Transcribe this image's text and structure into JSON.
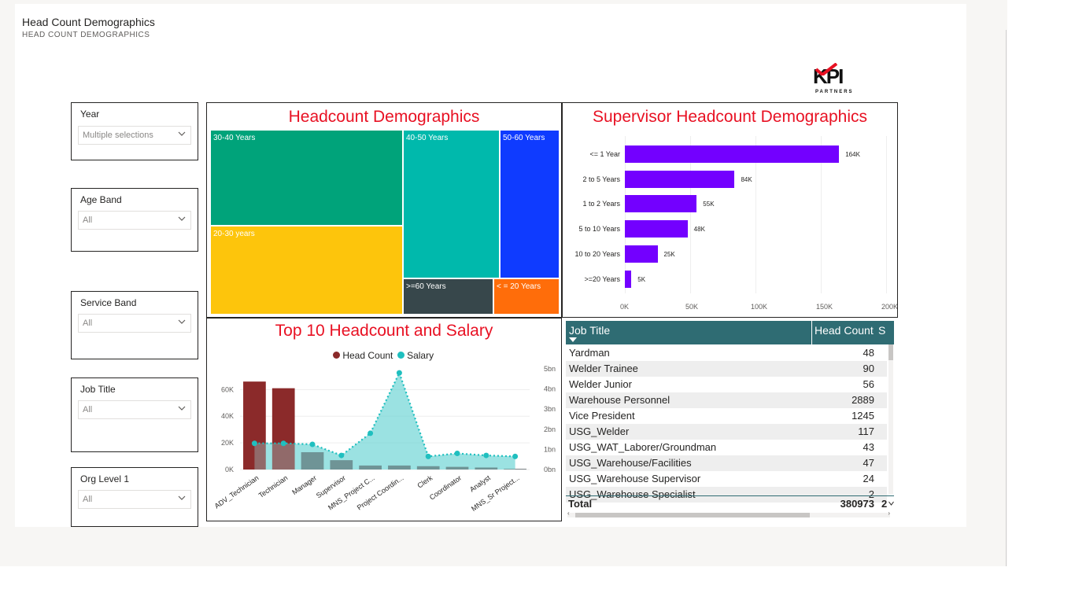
{
  "page": {
    "title": "Head Count Demographics",
    "subtitle": "HEAD COUNT DEMOGRAPHICS",
    "logo_text": "KPI",
    "logo_sub": "PARTNERS"
  },
  "slicers": [
    {
      "label": "Year",
      "value": "Multiple selections"
    },
    {
      "label": "Age Band",
      "value": "All"
    },
    {
      "label": "Service Band",
      "value": "All"
    },
    {
      "label": "Job Title",
      "value": "All"
    },
    {
      "label": "Org Level 1",
      "value": "All"
    }
  ],
  "colors": {
    "title_red": "#e81123",
    "bar_purple": "#7300ff",
    "table_header": "#2f6c73",
    "headcount_bar": "#8b2a2a",
    "salary_area": "#1fbfbf"
  },
  "chart_data": [
    {
      "type": "treemap",
      "title": "Headcount Demographics",
      "items": [
        {
          "label": "30-40 Years",
          "color": "#00a37a"
        },
        {
          "label": "20-30 years",
          "color": "#fdc50c"
        },
        {
          "label": "40-50 Years",
          "color": "#00b9ac"
        },
        {
          "label": "50-60 Years",
          "color": "#0f3bff"
        },
        {
          "label": ">=60 Years",
          "color": "#37474b"
        },
        {
          "label": "< = 20 Years",
          "color": "#ff6d0a"
        }
      ]
    },
    {
      "type": "bar",
      "title": "Supervisor Headcount Demographics",
      "categories": [
        "<= 1 Year",
        "2 to 5 Years",
        "1 to 2 Years",
        "5 to 10 Years",
        "10 to 20 Years",
        ">=20 Years"
      ],
      "values": [
        164,
        84,
        55,
        48,
        25,
        5
      ],
      "value_labels": [
        "164K",
        "84K",
        "55K",
        "48K",
        "25K",
        "5K"
      ],
      "xticks": [
        "0K",
        "50K",
        "100K",
        "150K",
        "200K"
      ],
      "xlim": [
        0,
        200
      ]
    },
    {
      "type": "combo",
      "title": "Top 10 Headcount and Salary",
      "legend": [
        "Head Count",
        "Salary"
      ],
      "categories": [
        "ADV_Technician",
        "Technician",
        "Manager",
        "Supervisor",
        "MNS_Project C...",
        "Project Coordin...",
        "Clerk",
        "Coordinator",
        "Analyst",
        "MNS_Sr Project..."
      ],
      "headcount": [
        66,
        61,
        13,
        7,
        3,
        3,
        2.5,
        2,
        1.5,
        0.5
      ],
      "salary": [
        1.3,
        1.3,
        1.25,
        0.7,
        1.8,
        4.8,
        0.65,
        0.8,
        0.7,
        0.65
      ],
      "y_left_ticks": [
        "0K",
        "20K",
        "40K",
        "60K"
      ],
      "y_right_ticks": [
        "0bn",
        "1bn",
        "2bn",
        "3bn",
        "4bn",
        "5bn"
      ],
      "ylim_left": [
        0,
        72
      ],
      "ylim_right": [
        0,
        5
      ]
    }
  ],
  "table": {
    "headers": [
      "Job Title",
      "Head Count",
      "S"
    ],
    "rows": [
      {
        "title": "Yardman",
        "count": "48"
      },
      {
        "title": "Welder Trainee",
        "count": "90"
      },
      {
        "title": "Welder Junior",
        "count": "56"
      },
      {
        "title": "Warehouse Personnel",
        "count": "2889"
      },
      {
        "title": "Vice President",
        "count": "1245"
      },
      {
        "title": "USG_Welder",
        "count": "117"
      },
      {
        "title": "USG_WAT_Laborer/Groundman",
        "count": "43"
      },
      {
        "title": "USG_Warehouse/Facilities",
        "count": "47"
      },
      {
        "title": "USG_Warehouse Supervisor",
        "count": "24"
      },
      {
        "title": "USG_Warehouse Specialist",
        "count": "2"
      }
    ],
    "total_label": "Total",
    "total_value": "380973",
    "total_extra": "2"
  }
}
